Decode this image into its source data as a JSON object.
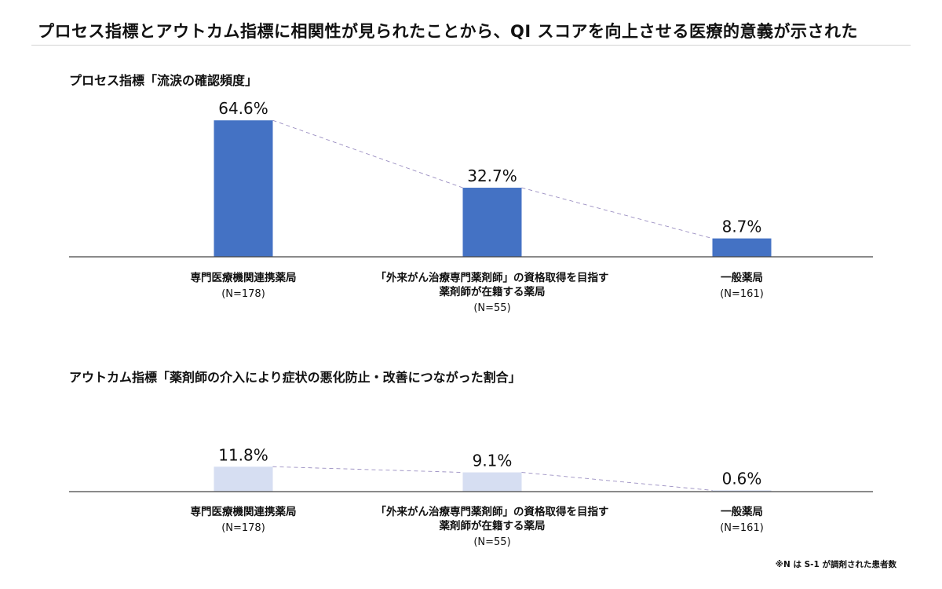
{
  "page": {
    "title": "プロセス指標とアウトカム指標に相関性が見られたことから、QI スコアを向上させる医療的意義が示された",
    "footnote": "※N は S-1 が調剤された患者数"
  },
  "chart_data": [
    {
      "type": "bar",
      "title": "プロセス指標「流涙の確認頻度」",
      "categories": [
        {
          "lines": [
            "専門医療機関連携薬局"
          ],
          "n": "(N=178)"
        },
        {
          "lines": [
            "「外来がん治療専門薬剤師」の資格取得を目指す",
            "薬剤師が在籍する薬局"
          ],
          "n": "(N=55)"
        },
        {
          "lines": [
            "一般薬局"
          ],
          "n": "(N=161)"
        }
      ],
      "values": [
        64.6,
        32.7,
        8.7
      ],
      "value_labels": [
        "64.6%",
        "32.7%",
        "8.7%"
      ],
      "unit": "%",
      "ylim": [
        0,
        100
      ],
      "bar_color": "#4472C4",
      "trend_line": "dashed",
      "grid": false,
      "legend": "none"
    },
    {
      "type": "bar",
      "title": "アウトカム指標「薬剤師の介入により症状の悪化防止・改善につながった割合」",
      "categories": [
        {
          "lines": [
            "専門医療機関連携薬局"
          ],
          "n": "(N=178)"
        },
        {
          "lines": [
            "「外来がん治療専門薬剤師」の資格取得を目指す",
            "薬剤師が在籍する薬局"
          ],
          "n": "(N=55)"
        },
        {
          "lines": [
            "一般薬局"
          ],
          "n": "(N=161)"
        }
      ],
      "values": [
        11.8,
        9.1,
        0.6
      ],
      "value_labels": [
        "11.8%",
        "9.1%",
        "0.6%"
      ],
      "unit": "%",
      "ylim": [
        0,
        100
      ],
      "bar_color": "#D6DEF2",
      "trend_line": "dashed",
      "grid": false,
      "legend": "none"
    }
  ]
}
